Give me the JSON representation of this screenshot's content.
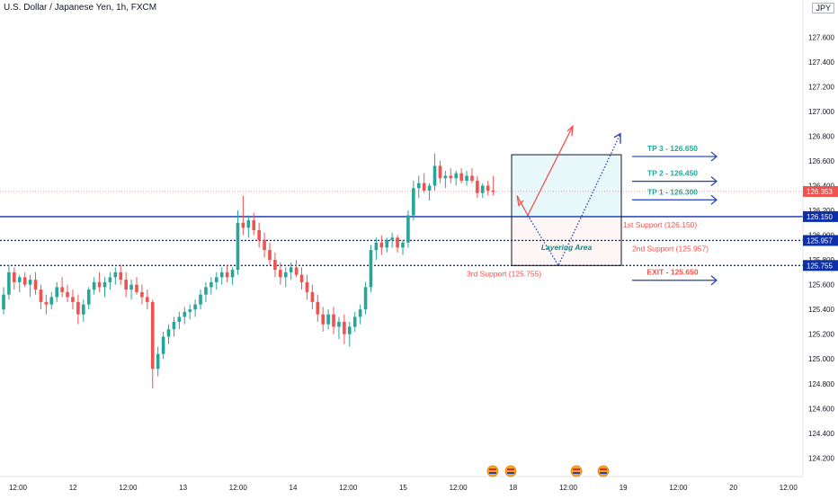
{
  "chart_data": {
    "type": "candlestick",
    "title": "U.S. Dollar / Japanese Yen, 1h, FXCM",
    "currency_badge": "JPY",
    "ylim": [
      124.05,
      127.9
    ],
    "y_ticks": [
      "124.200",
      "124.400",
      "124.600",
      "124.800",
      "125.000",
      "125.200",
      "125.400",
      "125.600",
      "125.800",
      "126.000",
      "126.200",
      "126.400",
      "126.600",
      "126.800",
      "127.000",
      "127.200",
      "127.400",
      "127.600"
    ],
    "x_ticks": [
      "12:00",
      "12",
      "12:00",
      "13",
      "12:00",
      "14",
      "12:00",
      "15",
      "12:00",
      "18",
      "12:00",
      "19",
      "12:00",
      "20",
      "12:00"
    ],
    "candles": [
      [
        125.4,
        125.58,
        125.36,
        125.52
      ],
      [
        125.52,
        125.76,
        125.48,
        125.7
      ],
      [
        125.7,
        125.74,
        125.56,
        125.62
      ],
      [
        125.62,
        125.68,
        125.54,
        125.66
      ],
      [
        125.66,
        125.7,
        125.58,
        125.6
      ],
      [
        125.6,
        125.68,
        125.5,
        125.64
      ],
      [
        125.64,
        125.7,
        125.52,
        125.56
      ],
      [
        125.56,
        125.6,
        125.4,
        125.46
      ],
      [
        125.46,
        125.52,
        125.36,
        125.44
      ],
      [
        125.44,
        125.54,
        125.4,
        125.5
      ],
      [
        125.5,
        125.62,
        125.46,
        125.58
      ],
      [
        125.58,
        125.66,
        125.5,
        125.54
      ],
      [
        125.54,
        125.6,
        125.46,
        125.5
      ],
      [
        125.5,
        125.56,
        125.4,
        125.46
      ],
      [
        125.46,
        125.52,
        125.28,
        125.36
      ],
      [
        125.36,
        125.48,
        125.3,
        125.44
      ],
      [
        125.44,
        125.58,
        125.4,
        125.56
      ],
      [
        125.56,
        125.66,
        125.52,
        125.62
      ],
      [
        125.62,
        125.7,
        125.54,
        125.58
      ],
      [
        125.58,
        125.66,
        125.5,
        125.62
      ],
      [
        125.62,
        125.7,
        125.56,
        125.66
      ],
      [
        125.66,
        125.74,
        125.6,
        125.7
      ],
      [
        125.7,
        125.76,
        125.6,
        125.64
      ],
      [
        125.64,
        125.7,
        125.5,
        125.56
      ],
      [
        125.56,
        125.64,
        125.48,
        125.6
      ],
      [
        125.6,
        125.66,
        125.52,
        125.54
      ],
      [
        125.54,
        125.6,
        125.44,
        125.5
      ],
      [
        125.5,
        125.56,
        125.4,
        125.46
      ],
      [
        125.46,
        125.48,
        124.76,
        124.92
      ],
      [
        124.92,
        125.1,
        124.86,
        125.04
      ],
      [
        125.04,
        125.22,
        125.0,
        125.18
      ],
      [
        125.18,
        125.28,
        125.12,
        125.24
      ],
      [
        125.24,
        125.34,
        125.18,
        125.3
      ],
      [
        125.3,
        125.38,
        125.24,
        125.34
      ],
      [
        125.34,
        125.42,
        125.28,
        125.38
      ],
      [
        125.38,
        125.44,
        125.32,
        125.4
      ],
      [
        125.4,
        125.48,
        125.34,
        125.44
      ],
      [
        125.44,
        125.56,
        125.4,
        125.52
      ],
      [
        125.52,
        125.62,
        125.46,
        125.58
      ],
      [
        125.58,
        125.66,
        125.52,
        125.62
      ],
      [
        125.62,
        125.7,
        125.56,
        125.66
      ],
      [
        125.66,
        125.74,
        125.6,
        125.7
      ],
      [
        125.7,
        125.76,
        125.62,
        125.66
      ],
      [
        125.66,
        125.74,
        125.6,
        125.72
      ],
      [
        125.72,
        126.2,
        125.68,
        126.1
      ],
      [
        126.1,
        126.32,
        126.0,
        126.06
      ],
      [
        126.06,
        126.16,
        125.98,
        126.12
      ],
      [
        126.12,
        126.18,
        126.0,
        126.04
      ],
      [
        126.04,
        126.1,
        125.9,
        125.96
      ],
      [
        125.96,
        126.02,
        125.82,
        125.88
      ],
      [
        125.88,
        125.94,
        125.76,
        125.8
      ],
      [
        125.8,
        125.86,
        125.66,
        125.72
      ],
      [
        125.72,
        125.78,
        125.6,
        125.66
      ],
      [
        125.66,
        125.74,
        125.58,
        125.7
      ],
      [
        125.7,
        125.78,
        125.64,
        125.74
      ],
      [
        125.74,
        125.8,
        125.66,
        125.68
      ],
      [
        125.68,
        125.74,
        125.56,
        125.62
      ],
      [
        125.62,
        125.68,
        125.48,
        125.54
      ],
      [
        125.54,
        125.6,
        125.4,
        125.46
      ],
      [
        125.46,
        125.52,
        125.3,
        125.36
      ],
      [
        125.36,
        125.42,
        125.22,
        125.28
      ],
      [
        125.28,
        125.4,
        125.24,
        125.36
      ],
      [
        125.36,
        125.42,
        125.2,
        125.26
      ],
      [
        125.26,
        125.34,
        125.16,
        125.3
      ],
      [
        125.3,
        125.36,
        125.12,
        125.2
      ],
      [
        125.2,
        125.3,
        125.1,
        125.26
      ],
      [
        125.26,
        125.38,
        125.22,
        125.34
      ],
      [
        125.34,
        125.44,
        125.28,
        125.4
      ],
      [
        125.4,
        125.62,
        125.36,
        125.58
      ],
      [
        125.58,
        125.92,
        125.54,
        125.88
      ],
      [
        125.88,
        125.98,
        125.8,
        125.94
      ],
      [
        125.94,
        126.0,
        125.84,
        125.9
      ],
      [
        125.9,
        125.98,
        125.86,
        125.96
      ],
      [
        125.96,
        126.02,
        125.9,
        125.98
      ],
      [
        125.98,
        126.0,
        125.86,
        125.9
      ],
      [
        125.9,
        125.96,
        125.84,
        125.94
      ],
      [
        125.94,
        126.2,
        125.9,
        126.16
      ],
      [
        126.16,
        126.44,
        126.12,
        126.38
      ],
      [
        126.38,
        126.48,
        126.3,
        126.42
      ],
      [
        126.42,
        126.5,
        126.34,
        126.36
      ],
      [
        126.36,
        126.42,
        126.28,
        126.4
      ],
      [
        126.4,
        126.66,
        126.36,
        126.56
      ],
      [
        126.56,
        126.6,
        126.42,
        126.46
      ],
      [
        126.46,
        126.52,
        126.38,
        126.48
      ],
      [
        126.48,
        126.54,
        126.42,
        126.46
      ],
      [
        126.46,
        126.52,
        126.4,
        126.5
      ],
      [
        126.5,
        126.54,
        126.42,
        126.44
      ],
      [
        126.44,
        126.52,
        126.4,
        126.48
      ],
      [
        126.48,
        126.54,
        126.42,
        126.44
      ],
      [
        126.44,
        126.48,
        126.3,
        126.34
      ],
      [
        126.34,
        126.42,
        126.3,
        126.4
      ],
      [
        126.4,
        126.44,
        126.32,
        126.36
      ],
      [
        126.36,
        126.48,
        126.32,
        126.35
      ]
    ],
    "current_price": "126.353",
    "current_price_color": "#ef5350",
    "up_color": "#26a69a",
    "down_color": "#ef5350",
    "levels": [
      {
        "price": 126.15,
        "label": "126.150",
        "style": "solid",
        "color": "#0d2fa8",
        "annotation": "1st Support (126.150)"
      },
      {
        "price": 125.957,
        "label": "125.957",
        "style": "dotted",
        "color": "#0d2fa8",
        "annotation": "2nd Support (125.957)"
      },
      {
        "price": 125.755,
        "label": "125.755",
        "style": "dotted",
        "color": "#0d2fa8",
        "annotation": "3rd Support (125.755)"
      }
    ],
    "targets": [
      {
        "label": "TP 3 - 126.650",
        "price": 126.65,
        "color": "#26a69a"
      },
      {
        "label": "TP 2 - 126.450",
        "price": 126.45,
        "color": "#26a69a"
      },
      {
        "label": "TP 1 - 126.300",
        "price": 126.3,
        "color": "#26a69a"
      },
      {
        "label": "EXIT - 125.650",
        "price": 125.65,
        "color": "#ef5350"
      }
    ],
    "zone_label": "Layering Area",
    "zone_top": 126.65,
    "zone_mid": 126.15,
    "zone_bottom": 125.755,
    "event_markers": 4
  }
}
